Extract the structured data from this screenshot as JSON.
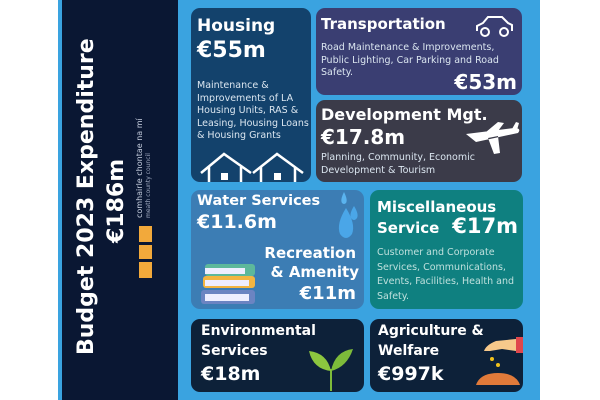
{
  "title": "Budget 2023 Expenditure",
  "total": "€186m",
  "logo": {
    "irish": "comhairle chontae na mí",
    "english": "meath county council"
  },
  "colors": {
    "background": "#3aa3e0",
    "sidebar": "#0a1733",
    "housing": "#13426c",
    "transportation": "#3a3e72",
    "development": "#3b3b49",
    "water": "#3c7db4",
    "misc": "#0f8080",
    "environmental": "#0d2139",
    "agriculture": "#0d2139",
    "logo": "#f2a93b"
  },
  "tiles": {
    "housing": {
      "title": "Housing",
      "amount": "€55m",
      "desc": "Maintenance & Improvements of LA Housing Units, RAS & Leasing, Housing Loans & Housing Grants",
      "icon": "houses-icon"
    },
    "transportation": {
      "title": "Transportation",
      "amount": "€53m",
      "desc": "Road Maintenance & Improvements, Public Lighting, Car Parking and Road Safety.",
      "icon": "car-icon"
    },
    "development": {
      "title": "Development Mgt.",
      "amount": "€17.8m",
      "desc": "Planning, Community, Economic Development & Tourism",
      "icon": "airplane-icon"
    },
    "water": {
      "title": "Water Services",
      "amount": "€11.6m",
      "icon": "water-drops-icon"
    },
    "recreation": {
      "title1": "Recreation",
      "title2": "& Amenity",
      "amount": "€11m",
      "icon": "books-icon"
    },
    "misc": {
      "title1": "Miscellaneous",
      "title2": "Service",
      "amount": "€17m",
      "desc": "Customer and Corporate Services, Communications, Events, Facilities, Health and Safety."
    },
    "environmental": {
      "title1": "Environmental",
      "title2": "Services",
      "amount": "€18m",
      "icon": "plant-icon"
    },
    "agriculture": {
      "title1": "Agriculture &",
      "title2": "Welfare",
      "amount": "€997k",
      "icon": "hand-seeds-icon"
    }
  }
}
